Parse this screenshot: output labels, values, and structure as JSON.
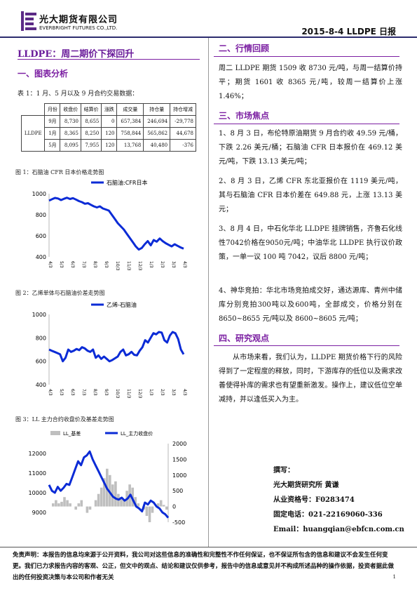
{
  "header": {
    "company_cn": "光大期货有限公司",
    "company_en": "EVERBRIGHT FUTURES CO.,LTD.",
    "report": "2015-8-4    LLDPE 日报"
  },
  "title": "LLDPE：周二期价下探回升",
  "left": {
    "sec1": "一、图表分析",
    "table_caption": "表 1：1 月、5 月以及 9 月合约交易数据：",
    "table": {
      "headers": [
        "月份",
        "收盘价",
        "结算价",
        "涨跌",
        "成交量",
        "持仓量",
        "持仓增减"
      ],
      "row_label": "LLDPE",
      "rows": [
        [
          "9月",
          "8,730",
          "8,655",
          "0",
          "657,384",
          "246,694",
          "-29,778"
        ],
        [
          "1月",
          "8,365",
          "8,250",
          "120",
          "758,844",
          "565,862",
          "44,678"
        ],
        [
          "5月",
          "8,095",
          "7,955",
          "120",
          "13,768",
          "40,480",
          "-376"
        ]
      ]
    },
    "fig1_caption": "图 1：石脑油 CFR 日本价格走势图",
    "fig2_caption": "图 2：乙烯单体与石脑油价差走势图",
    "fig3_caption": "图 3：LL 主力合约收盘价及基差走势图"
  },
  "chart_data": [
    {
      "type": "line",
      "title": "",
      "series": [
        {
          "name": "石脑油:CFR日本",
          "color": "#0b2bd6",
          "values": [
            935,
            948,
            960,
            955,
            940,
            952,
            962,
            950,
            958,
            945,
            930,
            920,
            905,
            910,
            895,
            880,
            870,
            880,
            860,
            850,
            840,
            800,
            760,
            720,
            690,
            660,
            620,
            580,
            540,
            500,
            470,
            485,
            520,
            550,
            510,
            560,
            545,
            575,
            550,
            530,
            515,
            500,
            520,
            505,
            490,
            478
          ]
        }
      ],
      "ylim": [
        400,
        1000
      ],
      "yticks": [
        "400",
        "600",
        "800",
        "1000"
      ]
    },
    {
      "type": "line",
      "title": "",
      "series": [
        {
          "name": "乙烯-石脑油",
          "color": "#0b2bd6",
          "values": [
            700,
            690,
            680,
            670,
            660,
            600,
            630,
            700,
            680,
            690,
            705,
            695,
            720,
            710,
            690,
            680,
            700,
            630,
            650,
            620,
            640,
            620,
            600,
            610,
            625,
            640,
            680,
            700,
            650,
            660,
            680,
            655,
            650,
            690,
            720,
            780,
            760,
            800,
            840,
            830,
            850,
            845,
            780,
            760,
            820,
            850,
            840,
            790,
            700,
            660
          ]
        }
      ],
      "ylim": [
        400,
        1000
      ],
      "yticks": [
        "400",
        "600",
        "800",
        "1000"
      ]
    },
    {
      "type": "line",
      "title": "",
      "series": [
        {
          "name": "LL_基差",
          "color": "#bfbfbf",
          "axis": "right",
          "values": [
            0,
            100,
            200,
            100,
            150,
            300,
            200,
            100,
            0,
            -100,
            100,
            200,
            0,
            -200,
            -100,
            0,
            200,
            400,
            600,
            900,
            1200,
            1000,
            700,
            800,
            400,
            300,
            200,
            500,
            700,
            600,
            300,
            100,
            0,
            -100,
            -300,
            -500,
            -200,
            0,
            100,
            200,
            50,
            -100
          ]
        },
        {
          "name": "LL_主力收盘价",
          "color": "#0b2bd6",
          "axis": "left",
          "values": [
            10400,
            10100,
            10000,
            10300,
            10100,
            10250,
            10450,
            10400,
            10800,
            11200,
            11600,
            11400,
            11800,
            11900,
            12100,
            11700,
            11400,
            11100,
            10800,
            10500,
            10200,
            10000,
            9800,
            9700,
            9650,
            9750,
            9600,
            9700,
            9900,
            9600,
            9300,
            9200,
            9050,
            9500,
            9400,
            9600,
            9500,
            9300,
            9200,
            9000,
            8900,
            8730
          ]
        }
      ],
      "ylim_left": [
        8500,
        12500
      ],
      "yticks_left": [
        "9000",
        "10000",
        "11000",
        "12000"
      ],
      "ylim_right": [
        -500,
        2000
      ],
      "yticks_right": [
        "-500",
        "0",
        "500",
        "1000",
        "1500",
        "2000"
      ]
    }
  ],
  "right": {
    "sec2": "二、行情回顾",
    "p2": "周二 LLDPE 期货 1509 收 8730 元/吨，与周一结算价持平；期货 1601 收 8365 元/吨，较周一结算价上涨 1.46%；",
    "sec3": "三、市场焦点",
    "p3_1": "1、8 月 3 日，布伦特原油期货 9 月合约收 49.59 元/桶，下跌 2.26 美元/桶；石脑油 CFR 日本报价在 469.12 美元/吨，下跌 13.13 美元/吨；",
    "p3_2": "2、8 月 3 日，乙烯 CFR 东北亚报价在 1119 美元/吨，其与石脑油 CFR 日本价差在 649.88 元，上涨 13.13 美元；",
    "p3_3": "3、8 月 4 日，中石化华北 LLDPE 挂牌销售，齐鲁石化线性7042价格在9050元/吨；中油华北 LLDPE 执行议价政策，一单一议 100 吨 7042，议后 8800 元/吨；",
    "p3_4": "4、神华竞拍：华北市场竞拍成交好，通达源库、青州中储库分别竞拍300吨以及600吨，全部成交，价格分别在 8650~8655 元/吨以及 8600~8605 元/吨；",
    "sec4": "四、研究观点",
    "p4": "从市场来看，我们认为，LLDPE 期货价格下行的风险得到了一定程度的释放，同时，下游库存的低位以及需求改善使得补库的需求也有望重新激发。操作上，建议低位空单减持，并以逢低买入为主。"
  },
  "author": {
    "l1": "撰写：",
    "l2": "光大期货研究所      黄谦",
    "l3": "从业资格号：F0283474",
    "l4": "固定电话：021-22169060-336",
    "l5": "Email：huangqian@ebfcn.com.cn"
  },
  "disclaimer": "免责声明：本报告的信息均来源于公开资料，我公司对这些信息的准确性和完整性不作任何保证，也不保证所包含的信息和建议不会发生任何变更。我们已力求报告内容的客观、公正，但文中的观点、结论和建议仅供参考，报告中的信息或意见并不构成所述品种的操作依据，投资者据此做出的任何投资决策与本公司和作者无关",
  "page": "1",
  "x_date_labels": [
    "4/3",
    "5/3",
    "6/3",
    "7/3",
    "8/3",
    "9/3",
    "10/3",
    "11/3",
    "12/3",
    "1/3",
    "2/3",
    "3/3",
    "4/3"
  ]
}
